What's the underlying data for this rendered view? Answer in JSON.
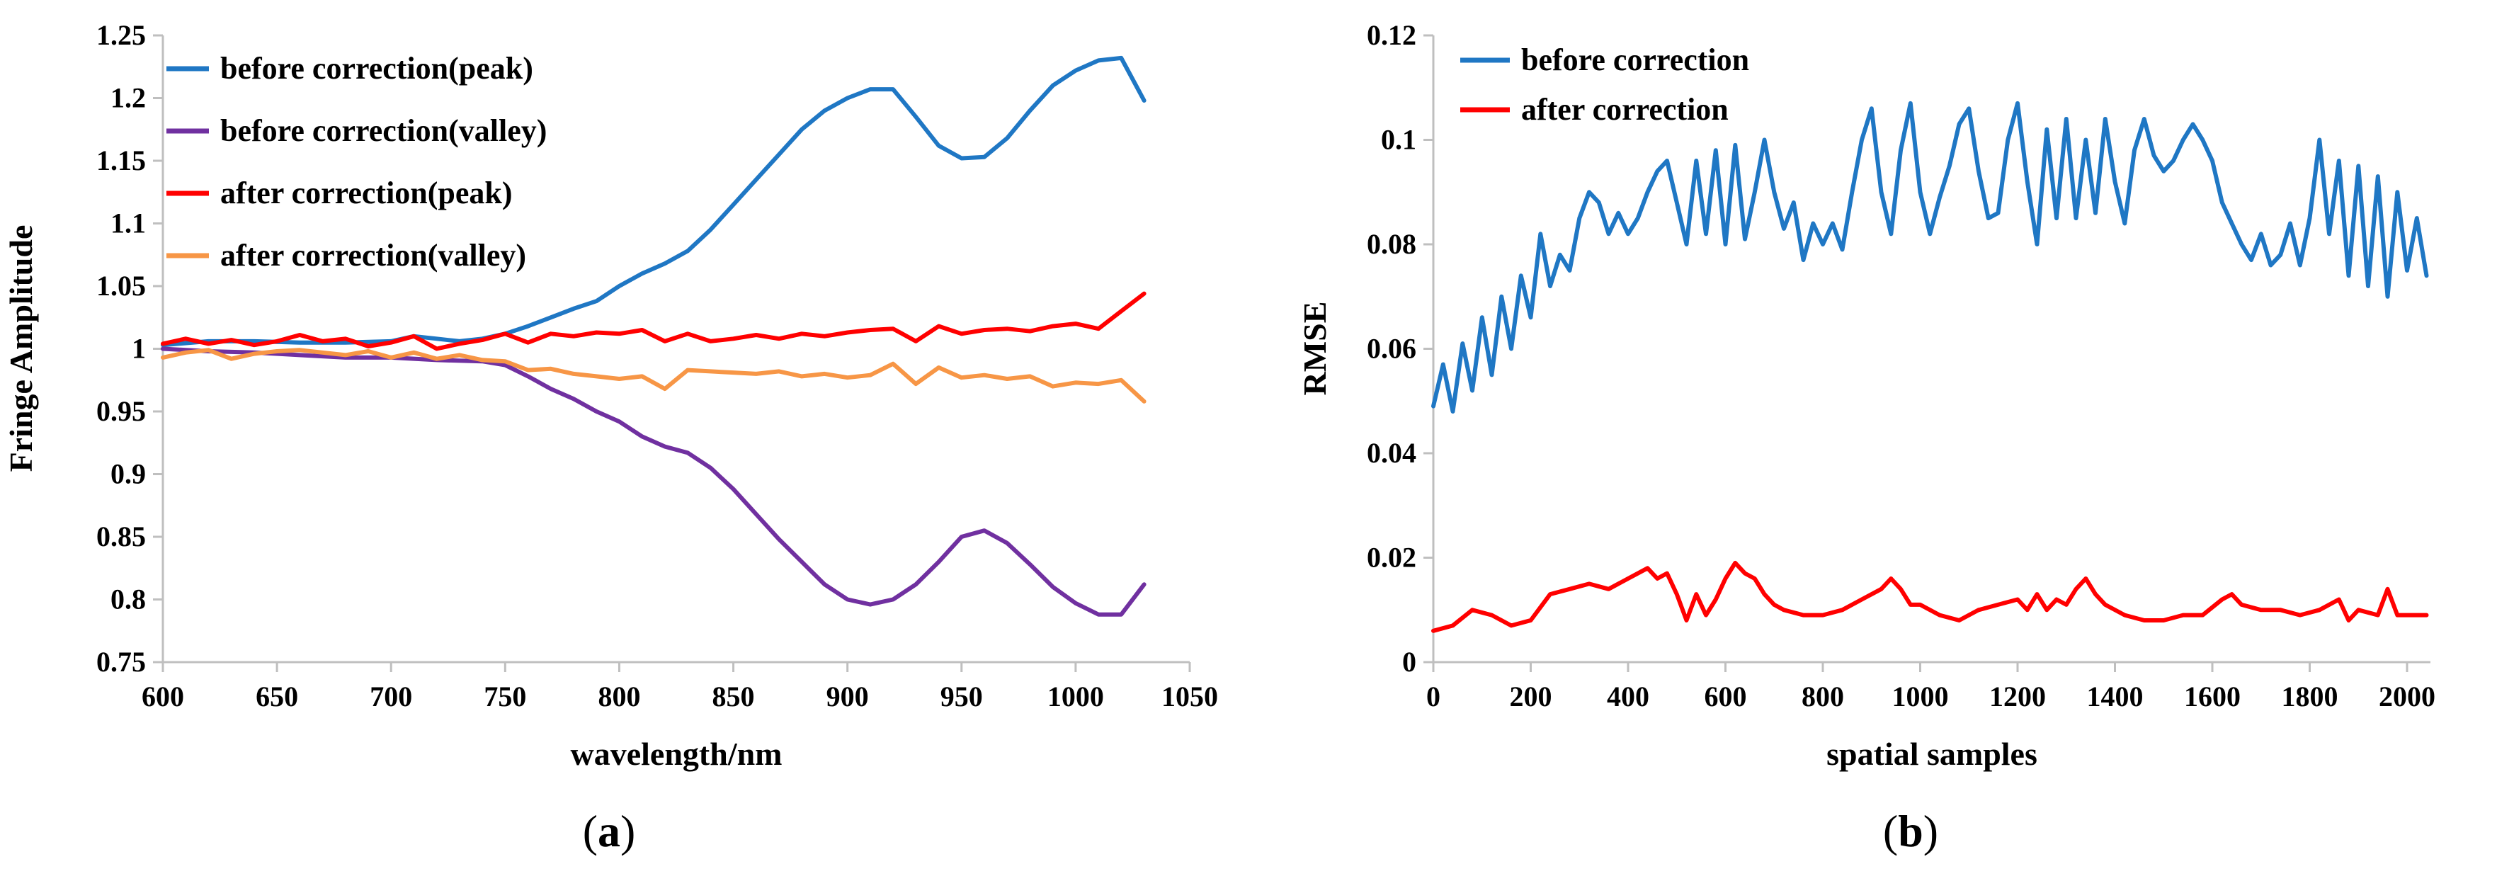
{
  "chart_data": [
    {
      "type": "line",
      "caption_open": "(",
      "caption_letter": "a",
      "caption_close": ")",
      "xlabel": "wavelength/nm",
      "ylabel": "Fringe Amplitude",
      "xlim": [
        600,
        1050
      ],
      "ylim": [
        0.75,
        1.25
      ],
      "xticks": [
        600,
        650,
        700,
        750,
        800,
        850,
        900,
        950,
        1000,
        1050
      ],
      "yticks": [
        0.75,
        0.8,
        0.85,
        0.9,
        0.95,
        1,
        1.05,
        1.1,
        1.15,
        1.2,
        1.25
      ],
      "legend_position": "top-left",
      "series": [
        {
          "name": "before correction(peak)",
          "color": "#1f77c4",
          "x": [
            600,
            620,
            640,
            660,
            680,
            700,
            710,
            720,
            730,
            740,
            750,
            760,
            770,
            780,
            790,
            800,
            810,
            820,
            830,
            840,
            850,
            860,
            870,
            880,
            890,
            900,
            910,
            920,
            930,
            940,
            950,
            960,
            970,
            980,
            990,
            1000,
            1010,
            1020,
            1030
          ],
          "y": [
            1.003,
            1.006,
            1.006,
            1.005,
            1.005,
            1.006,
            1.01,
            1.008,
            1.006,
            1.008,
            1.012,
            1.018,
            1.025,
            1.032,
            1.038,
            1.05,
            1.06,
            1.068,
            1.078,
            1.095,
            1.115,
            1.135,
            1.155,
            1.175,
            1.19,
            1.2,
            1.207,
            1.207,
            1.185,
            1.162,
            1.152,
            1.153,
            1.168,
            1.19,
            1.21,
            1.222,
            1.23,
            1.232,
            1.198
          ]
        },
        {
          "name": "before correction(valley)",
          "color": "#7030a0",
          "x": [
            600,
            620,
            640,
            660,
            680,
            700,
            720,
            740,
            750,
            760,
            770,
            780,
            790,
            800,
            810,
            820,
            830,
            840,
            850,
            860,
            870,
            880,
            890,
            900,
            910,
            920,
            930,
            940,
            950,
            960,
            970,
            980,
            990,
            1000,
            1010,
            1020,
            1030
          ],
          "y": [
            1.0,
            0.998,
            0.997,
            0.995,
            0.993,
            0.993,
            0.991,
            0.99,
            0.987,
            0.978,
            0.968,
            0.96,
            0.95,
            0.942,
            0.93,
            0.922,
            0.917,
            0.905,
            0.888,
            0.868,
            0.848,
            0.83,
            0.812,
            0.8,
            0.796,
            0.8,
            0.812,
            0.83,
            0.85,
            0.855,
            0.845,
            0.828,
            0.81,
            0.797,
            0.788,
            0.788,
            0.812
          ]
        },
        {
          "name": "after correction(peak)",
          "color": "#ff0000",
          "x": [
            600,
            610,
            620,
            630,
            640,
            650,
            660,
            670,
            680,
            690,
            700,
            710,
            720,
            730,
            740,
            750,
            760,
            770,
            780,
            790,
            800,
            810,
            820,
            830,
            840,
            850,
            860,
            870,
            880,
            890,
            900,
            910,
            920,
            930,
            940,
            950,
            960,
            970,
            980,
            990,
            1000,
            1010,
            1020,
            1030
          ],
          "y": [
            1.004,
            1.008,
            1.004,
            1.007,
            1.003,
            1.006,
            1.011,
            1.006,
            1.008,
            1.002,
            1.005,
            1.01,
            1.0,
            1.004,
            1.007,
            1.012,
            1.005,
            1.012,
            1.01,
            1.013,
            1.012,
            1.015,
            1.006,
            1.012,
            1.006,
            1.008,
            1.011,
            1.008,
            1.012,
            1.01,
            1.013,
            1.015,
            1.016,
            1.006,
            1.018,
            1.012,
            1.015,
            1.016,
            1.014,
            1.018,
            1.02,
            1.016,
            1.03,
            1.044
          ]
        },
        {
          "name": "after correction(valley)",
          "color": "#f79646",
          "x": [
            600,
            610,
            620,
            630,
            640,
            650,
            660,
            670,
            680,
            690,
            700,
            710,
            720,
            730,
            740,
            750,
            760,
            770,
            780,
            790,
            800,
            810,
            820,
            830,
            840,
            850,
            860,
            870,
            880,
            890,
            900,
            910,
            920,
            930,
            940,
            950,
            960,
            970,
            980,
            990,
            1000,
            1010,
            1020,
            1030
          ],
          "y": [
            0.993,
            0.997,
            0.999,
            0.992,
            0.996,
            0.998,
            0.999,
            0.997,
            0.995,
            0.998,
            0.993,
            0.997,
            0.992,
            0.995,
            0.991,
            0.99,
            0.983,
            0.984,
            0.98,
            0.978,
            0.976,
            0.978,
            0.968,
            0.983,
            0.982,
            0.981,
            0.98,
            0.982,
            0.978,
            0.98,
            0.977,
            0.979,
            0.988,
            0.972,
            0.985,
            0.977,
            0.979,
            0.976,
            0.978,
            0.97,
            0.973,
            0.972,
            0.975,
            0.958
          ]
        }
      ]
    },
    {
      "type": "line",
      "caption_open": "(",
      "caption_letter": "b",
      "caption_close": ")",
      "xlabel": "spatial samples",
      "ylabel": "RMSE",
      "xlim": [
        0,
        2048
      ],
      "ylim": [
        0,
        0.12
      ],
      "xticks": [
        0,
        200,
        400,
        600,
        800,
        1000,
        1200,
        1400,
        1600,
        1800,
        2000
      ],
      "yticks": [
        0,
        0.02,
        0.04,
        0.06,
        0.08,
        0.1,
        0.12
      ],
      "legend_position": "top-left",
      "series": [
        {
          "name": "before correction",
          "color": "#1f77c4",
          "x": [
            0,
            20,
            40,
            60,
            80,
            100,
            120,
            140,
            160,
            180,
            200,
            220,
            240,
            260,
            280,
            300,
            320,
            340,
            360,
            380,
            400,
            420,
            440,
            460,
            480,
            500,
            520,
            540,
            560,
            580,
            600,
            620,
            640,
            660,
            680,
            700,
            720,
            740,
            760,
            780,
            800,
            820,
            840,
            860,
            880,
            900,
            920,
            940,
            960,
            980,
            1000,
            1020,
            1040,
            1060,
            1080,
            1100,
            1120,
            1140,
            1160,
            1180,
            1200,
            1220,
            1240,
            1260,
            1280,
            1300,
            1320,
            1340,
            1360,
            1380,
            1400,
            1420,
            1440,
            1460,
            1480,
            1500,
            1520,
            1540,
            1560,
            1580,
            1600,
            1620,
            1640,
            1660,
            1680,
            1700,
            1720,
            1740,
            1760,
            1780,
            1800,
            1820,
            1840,
            1860,
            1880,
            1900,
            1920,
            1940,
            1960,
            1980,
            2000,
            2020,
            2040
          ],
          "y": [
            0.049,
            0.057,
            0.048,
            0.061,
            0.052,
            0.066,
            0.055,
            0.07,
            0.06,
            0.074,
            0.066,
            0.082,
            0.072,
            0.078,
            0.075,
            0.085,
            0.09,
            0.088,
            0.082,
            0.086,
            0.082,
            0.085,
            0.09,
            0.094,
            0.096,
            0.088,
            0.08,
            0.096,
            0.082,
            0.098,
            0.08,
            0.099,
            0.081,
            0.09,
            0.1,
            0.09,
            0.083,
            0.088,
            0.077,
            0.084,
            0.08,
            0.084,
            0.079,
            0.09,
            0.1,
            0.106,
            0.09,
            0.082,
            0.098,
            0.107,
            0.09,
            0.082,
            0.089,
            0.095,
            0.103,
            0.106,
            0.094,
            0.085,
            0.086,
            0.1,
            0.107,
            0.092,
            0.08,
            0.102,
            0.085,
            0.104,
            0.085,
            0.1,
            0.086,
            0.104,
            0.092,
            0.084,
            0.098,
            0.104,
            0.097,
            0.094,
            0.096,
            0.1,
            0.103,
            0.1,
            0.096,
            0.088,
            0.084,
            0.08,
            0.077,
            0.082,
            0.076,
            0.078,
            0.084,
            0.076,
            0.085,
            0.1,
            0.082,
            0.096,
            0.074,
            0.095,
            0.072,
            0.093,
            0.07,
            0.09,
            0.075,
            0.085,
            0.074
          ]
        },
        {
          "name": "after correction",
          "color": "#ff0000",
          "x": [
            0,
            40,
            80,
            120,
            160,
            200,
            240,
            280,
            320,
            360,
            400,
            440,
            460,
            480,
            500,
            520,
            540,
            560,
            580,
            600,
            620,
            640,
            660,
            680,
            700,
            720,
            760,
            800,
            840,
            880,
            920,
            940,
            960,
            980,
            1000,
            1040,
            1080,
            1120,
            1160,
            1200,
            1220,
            1240,
            1260,
            1280,
            1300,
            1320,
            1340,
            1360,
            1380,
            1420,
            1460,
            1500,
            1540,
            1580,
            1620,
            1640,
            1660,
            1700,
            1740,
            1780,
            1820,
            1860,
            1880,
            1900,
            1940,
            1960,
            1980,
            2000,
            2040
          ],
          "y": [
            0.006,
            0.007,
            0.01,
            0.009,
            0.007,
            0.008,
            0.013,
            0.014,
            0.015,
            0.014,
            0.016,
            0.018,
            0.016,
            0.017,
            0.013,
            0.008,
            0.013,
            0.009,
            0.012,
            0.016,
            0.019,
            0.017,
            0.016,
            0.013,
            0.011,
            0.01,
            0.009,
            0.009,
            0.01,
            0.012,
            0.014,
            0.016,
            0.014,
            0.011,
            0.011,
            0.009,
            0.008,
            0.01,
            0.011,
            0.012,
            0.01,
            0.013,
            0.01,
            0.012,
            0.011,
            0.014,
            0.016,
            0.013,
            0.011,
            0.009,
            0.008,
            0.008,
            0.009,
            0.009,
            0.012,
            0.013,
            0.011,
            0.01,
            0.01,
            0.009,
            0.01,
            0.012,
            0.008,
            0.01,
            0.009,
            0.014,
            0.009,
            0.009,
            0.009
          ]
        }
      ]
    }
  ]
}
